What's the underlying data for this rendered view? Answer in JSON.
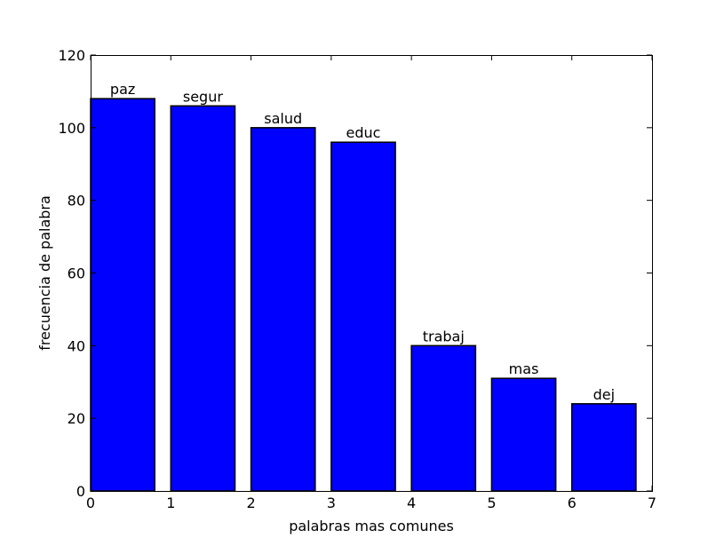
{
  "chart_data": {
    "type": "bar",
    "xlabel": "palabras mas comunes",
    "ylabel": "frecuencia de palabra",
    "xlim": [
      0,
      7
    ],
    "ylim": [
      0,
      120
    ],
    "xticks": [
      0,
      1,
      2,
      3,
      4,
      5,
      6,
      7
    ],
    "yticks": [
      0,
      20,
      40,
      60,
      80,
      100,
      120
    ],
    "bar_width": 0.8,
    "bars": [
      {
        "x": 0,
        "value": 108,
        "label": "paz"
      },
      {
        "x": 1,
        "value": 106,
        "label": "segur"
      },
      {
        "x": 2,
        "value": 100,
        "label": "salud"
      },
      {
        "x": 3,
        "value": 96,
        "label": "educ"
      },
      {
        "x": 4,
        "value": 40,
        "label": "trabaj"
      },
      {
        "x": 5,
        "value": 31,
        "label": "mas"
      },
      {
        "x": 6,
        "value": 24,
        "label": "dej"
      }
    ],
    "bar_color": "#0000ff",
    "bar_edge_color": "#000000",
    "grid": false
  }
}
